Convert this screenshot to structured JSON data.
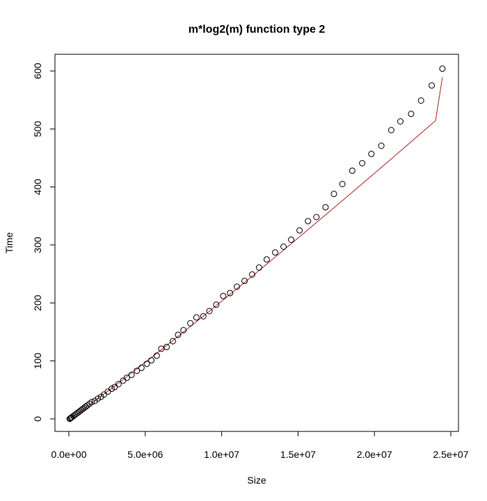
{
  "chart_data": {
    "type": "scatter",
    "title": "m*log2(m) function type 2",
    "xlabel": "Size",
    "ylabel": "Time",
    "xlim": [
      0,
      25000000
    ],
    "ylim": [
      0,
      620
    ],
    "x_ticks": [
      0,
      5000000,
      10000000,
      15000000,
      20000000,
      25000000
    ],
    "x_tick_labels": [
      "0.0e+00",
      "5.0e+06",
      "1.0e+07",
      "1.5e+07",
      "2.0e+07",
      "2.5e+07"
    ],
    "y_ticks": [
      0,
      100,
      200,
      300,
      400,
      500,
      600
    ],
    "y_tick_labels": [
      "0",
      "100",
      "200",
      "300",
      "400",
      "500",
      "600"
    ],
    "grid": false,
    "series": [
      {
        "kind": "points",
        "marker": "open-circle",
        "color": "#000000",
        "x": [
          50000,
          100000,
          150000,
          200000,
          300000,
          400000,
          500000,
          600000,
          700000,
          800000,
          900000,
          1000000,
          1100000,
          1200000,
          1350000,
          1500000,
          1700000,
          1900000,
          2100000,
          2300000,
          2550000,
          2800000,
          3000000,
          3250000,
          3550000,
          3800000,
          4100000,
          4450000,
          4750000,
          5100000,
          5400000,
          5750000,
          6050000,
          6400000,
          6800000,
          7150000,
          7500000,
          7950000,
          8350000,
          8800000,
          9200000,
          9650000,
          10100000,
          10550000,
          11000000,
          11500000,
          12000000,
          12450000,
          12950000,
          13500000,
          14050000,
          14550000,
          15100000,
          15650000,
          16200000,
          16800000,
          17350000,
          17900000,
          18550000,
          19200000,
          19800000,
          20450000,
          21100000,
          21700000,
          22400000,
          23050000,
          23750000,
          24450000
        ],
        "y": [
          0,
          1,
          2,
          3,
          5,
          7,
          9,
          11,
          13,
          15,
          17,
          19,
          21,
          23,
          26,
          29,
          31,
          35,
          38,
          42,
          47,
          52,
          55,
          60,
          66,
          71,
          76,
          83,
          88,
          95,
          101,
          109,
          121,
          124,
          134,
          145,
          153,
          165,
          175,
          177,
          186,
          197,
          212,
          217,
          228,
          238,
          249,
          261,
          275,
          287,
          297,
          309,
          325,
          341,
          348,
          365,
          388,
          405,
          428,
          441,
          457,
          471,
          498,
          513,
          526,
          549,
          575,
          604
        ]
      },
      {
        "kind": "line",
        "color": "#b22222",
        "x": [
          0,
          500000,
          1000000,
          2000000,
          3000000,
          4000000,
          5000000,
          6000000,
          7000000,
          8000000,
          9000000,
          10000000,
          11000000,
          12000000,
          13000000,
          14000000,
          15000000,
          16000000,
          17000000,
          18000000,
          19000000,
          20000000,
          21000000,
          22000000,
          23000000,
          24000000,
          24450000
        ],
        "y": [
          0,
          8.3,
          17.8,
          37.1,
          56.9,
          77.1,
          97.6,
          118.3,
          139.2,
          160.3,
          181.5,
          203.0,
          224.5,
          246.2,
          268.0,
          289.9,
          311.9,
          334.0,
          356.3,
          378.6,
          401.0,
          423.5,
          446.1,
          468.8,
          491.5,
          514.4,
          589.0
        ]
      }
    ]
  }
}
